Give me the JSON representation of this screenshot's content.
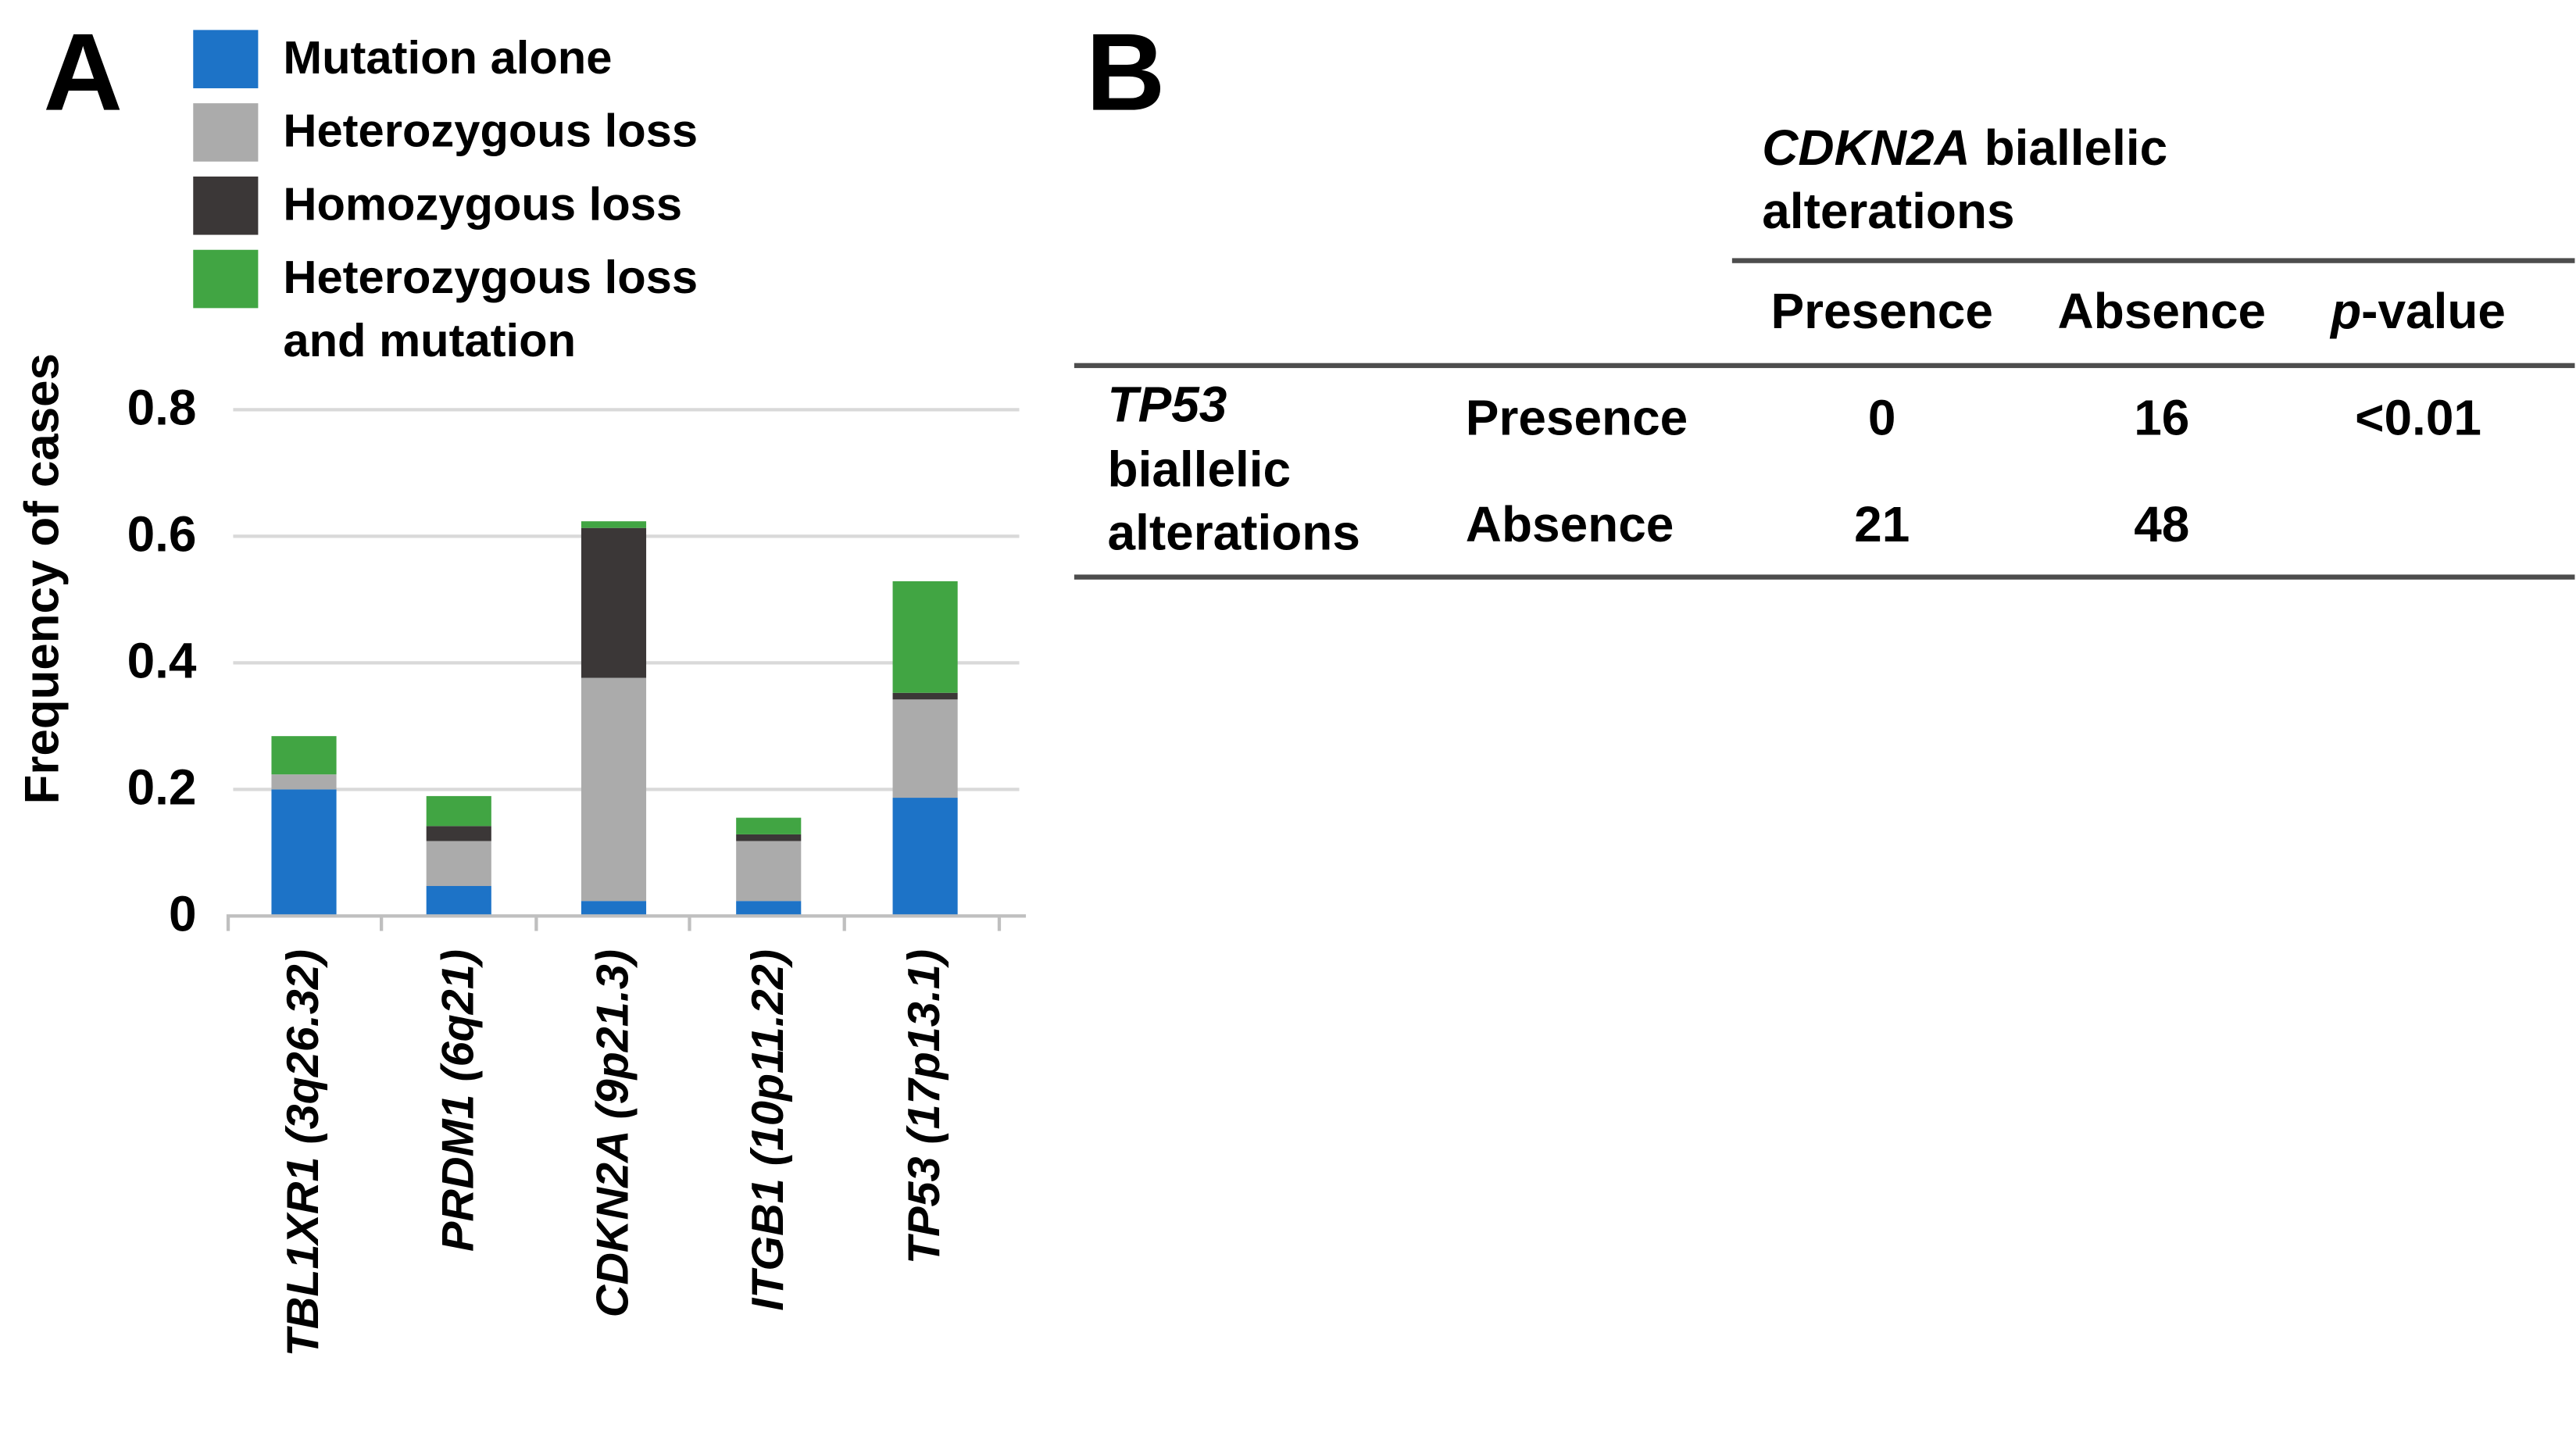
{
  "panel_a": {
    "label": "A",
    "legend_items": [
      {
        "lines": [
          "Mutation alone"
        ]
      },
      {
        "lines": [
          "Heterozygous loss"
        ]
      },
      {
        "lines": [
          "Homozygous loss"
        ]
      },
      {
        "lines": [
          "Heterozygous loss",
          "and mutation"
        ]
      }
    ]
  },
  "chart_data": {
    "type": "bar",
    "stacked": true,
    "title": "",
    "xlabel": "",
    "ylabel": "Frequency of cases",
    "ylim": [
      0,
      0.8
    ],
    "yticks": [
      0,
      0.2,
      0.4,
      0.6,
      0.8
    ],
    "ytick_labels": [
      "0",
      "0.2",
      "0.4",
      "0.6",
      "0.8"
    ],
    "grid": true,
    "legend_position": "top-left",
    "categories": [
      "TBL1XR1 (3q26.32)",
      "PRDM1 (6q21)",
      "CDKN2A (9p21.3)",
      "ITGB1 (10p11.22)",
      "TP53 (17p13.1)"
    ],
    "series": [
      {
        "name": "Mutation alone",
        "color": "#1d73c7",
        "values": [
          0.2,
          0.047,
          0.024,
          0.024,
          0.188
        ]
      },
      {
        "name": "Heterozygous loss",
        "color": "#ababab",
        "values": [
          0.024,
          0.071,
          0.353,
          0.094,
          0.153
        ]
      },
      {
        "name": "Homozygous loss",
        "color": "#3b3737",
        "values": [
          0.0,
          0.024,
          0.235,
          0.012,
          0.012
        ]
      },
      {
        "name": "Heterozygous loss and mutation",
        "color": "#41a543",
        "values": [
          0.059,
          0.047,
          0.012,
          0.024,
          0.176
        ]
      }
    ],
    "stack_totals": [
      0.283,
      0.189,
      0.624,
      0.154,
      0.529
    ],
    "grid_color": "#d9d9d9",
    "axis_color": "#bfbfbf"
  },
  "panel_b": {
    "label": "B",
    "col_group_header": {
      "gene": "CDKN2A",
      "rest": "biallelic",
      "line2": "alterations"
    },
    "col_headers": {
      "presence": "Presence",
      "absence": "Absence",
      "p_italic": "p",
      "p_rest": "-value"
    },
    "row_group_header": {
      "gene": "TP53",
      "line2": "biallelic",
      "line3": "alterations"
    },
    "rows": [
      {
        "label": "Presence",
        "presence": "0",
        "absence": "16",
        "p": "<0.01"
      },
      {
        "label": "Absence",
        "presence": "21",
        "absence": "48",
        "p": ""
      }
    ]
  }
}
